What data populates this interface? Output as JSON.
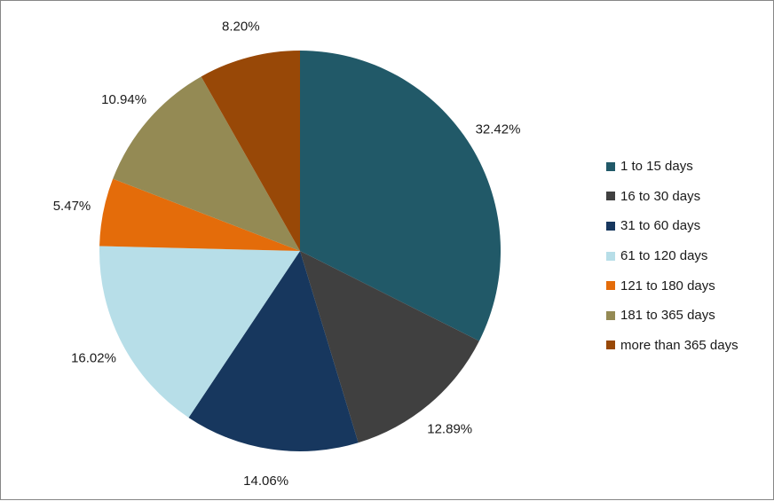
{
  "chart_data": {
    "type": "pie",
    "title": "",
    "categories": [
      "1 to 15 days",
      "16 to 30 days",
      "31 to 60 days",
      "61 to 120 days",
      "121 to 180 days",
      "181 to 365 days",
      "more than 365 days"
    ],
    "values": [
      32.42,
      12.89,
      14.06,
      16.02,
      5.47,
      10.94,
      8.2
    ],
    "labels": [
      "32.42%",
      "12.89%",
      "14.06%",
      "16.02%",
      "5.47%",
      "10.94%",
      "8.20%"
    ],
    "colors": [
      "#215968",
      "#404040",
      "#17375E",
      "#B7DEE8",
      "#E46C0A",
      "#948A54",
      "#984807"
    ],
    "legend_position": "right",
    "start": "top",
    "direction": "clockwise"
  }
}
